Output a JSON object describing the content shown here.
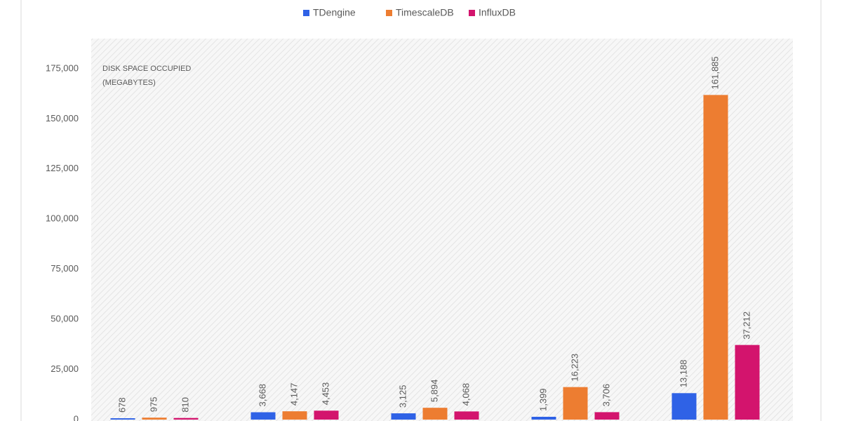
{
  "chart_data": {
    "type": "bar",
    "annotation": [
      "DISK SPACE OCCUPIED",
      "(MEGABYTES)"
    ],
    "categories": [
      null,
      null,
      null,
      null,
      null
    ],
    "series": [
      {
        "name": "TDengine",
        "color": "#2f62e6",
        "values": [
          678,
          3668,
          3125,
          1399,
          13188
        ],
        "value_labels": [
          "678",
          "3,668",
          "3,125",
          "1,399",
          "13,188"
        ]
      },
      {
        "name": "TimescaleDB",
        "color": "#ed7d31",
        "values": [
          975,
          4147,
          5894,
          16223,
          161885
        ],
        "value_labels": [
          "975",
          "4,147",
          "5,894",
          "16,223",
          "161,885"
        ]
      },
      {
        "name": "InfluxDB",
        "color": "#d3146d",
        "values": [
          810,
          4453,
          4068,
          3706,
          37212
        ],
        "value_labels": [
          "810",
          "4,453",
          "4,068",
          "3,706",
          "37,212"
        ]
      }
    ],
    "ylim": [
      0,
      190000
    ],
    "yticks": [
      0,
      {
        "value": 25000,
        "label": "25,000"
      },
      {
        "value": 50000,
        "label": "50,000"
      },
      {
        "value": 75000,
        "label": "75,000"
      },
      {
        "value": 100000,
        "label": "100,000"
      },
      {
        "value": 125000,
        "label": "125,000"
      },
      {
        "value": 150000,
        "label": "150,000"
      },
      {
        "value": 175000,
        "label": "175,000"
      }
    ],
    "legend": "top"
  }
}
